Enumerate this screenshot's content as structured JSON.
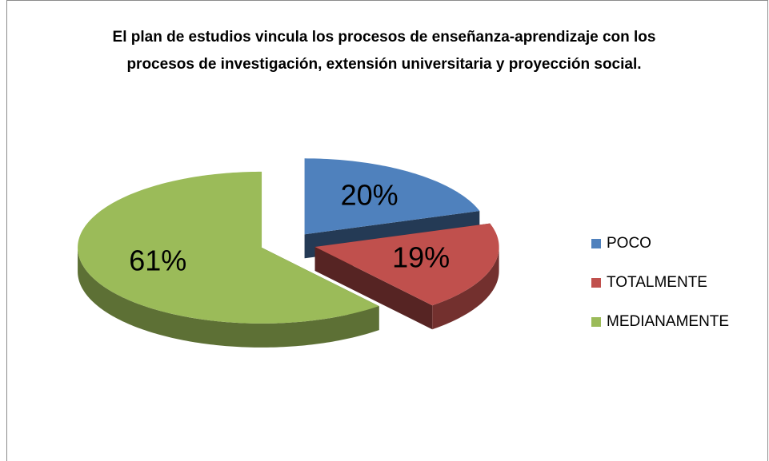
{
  "chart_data": {
    "type": "pie",
    "title": "El plan de estudios vincula los procesos de enseñanza-aprendizaje con los procesos de investigación, extensión universitaria y proyección social.",
    "categories": [
      "POCO",
      "TOTALMENTE",
      "MEDIANAMENTE"
    ],
    "values": [
      20,
      19,
      61
    ],
    "value_labels": [
      "20%",
      "19%",
      "61%"
    ],
    "colors": [
      "#4f81bd",
      "#c0504d",
      "#9bbb59"
    ],
    "legend": "right"
  }
}
